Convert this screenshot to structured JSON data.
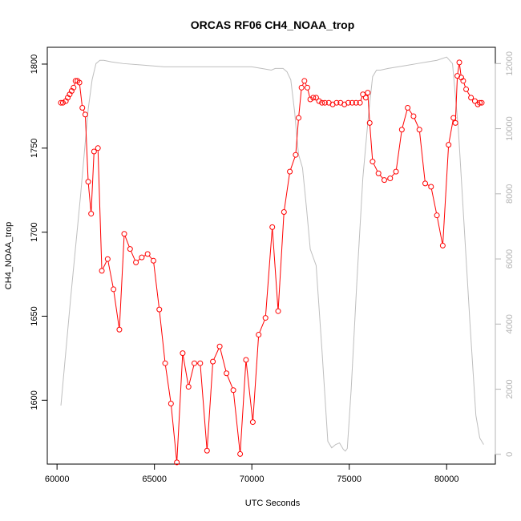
{
  "chart_data": {
    "type": "line",
    "title": "ORCAS RF06 CH4_NOAA_trop",
    "xlabel": "UTC Seconds",
    "ylabel": "CH4_NOAA_trop",
    "xlim": [
      59500,
      82500
    ],
    "ylim": [
      1562,
      1810
    ],
    "ylim_right": [
      -300,
      12500
    ],
    "x_ticks": [
      60000,
      65000,
      70000,
      75000,
      80000
    ],
    "y_ticks_left": [
      1600,
      1650,
      1700,
      1750,
      1800
    ],
    "y_ticks_right": [
      0,
      2000,
      4000,
      6000,
      8000,
      10000,
      12000
    ],
    "grid": false,
    "legend": "none",
    "colors": {
      "ch4": "#ff0000",
      "altitude": "#bebebe",
      "axis": "#000000",
      "right_axis": "#b4b4b4"
    },
    "series": [
      {
        "axis": "left",
        "style": "line+circles",
        "x": [
          60200,
          60300,
          60450,
          60550,
          60650,
          60750,
          60850,
          60950,
          61050,
          61150,
          61300,
          61450,
          61600,
          61750,
          61900,
          62100,
          62300,
          62600,
          62900,
          63200,
          63450,
          63750,
          64050,
          64350,
          64650,
          64950,
          65250,
          65550,
          65850,
          66150,
          66450,
          66750,
          67050,
          67350,
          67700,
          68000,
          68350,
          68700,
          69050,
          69400,
          69700,
          70050,
          70350,
          70700,
          71050,
          71350,
          71650,
          71950,
          72250,
          72400,
          72550,
          72700,
          72850,
          73000,
          73150,
          73300,
          73450,
          73600,
          73750,
          73950,
          74150,
          74350,
          74550,
          74750,
          74950,
          75150,
          75350,
          75550,
          75700,
          75850,
          75950,
          76050,
          76200,
          76500,
          76800,
          77100,
          77400,
          77700,
          78000,
          78300,
          78600,
          78900,
          79200,
          79500,
          79800,
          80100,
          80350,
          80450,
          80550,
          80650,
          80750,
          80850,
          81000,
          81250,
          81450,
          81600,
          81700,
          81800
        ],
        "y": [
          1777,
          1777,
          1778,
          1780,
          1782,
          1784,
          1786,
          1790,
          1790,
          1789,
          1774,
          1770,
          1730,
          1711,
          1748,
          1750,
          1677,
          1684,
          1666,
          1642,
          1699,
          1690,
          1682,
          1685,
          1687,
          1683,
          1654,
          1622,
          1598,
          1563,
          1628,
          1608,
          1622,
          1622,
          1570,
          1623,
          1632,
          1616,
          1606,
          1568,
          1624,
          1587,
          1639,
          1649,
          1703,
          1653,
          1712,
          1736,
          1746,
          1768,
          1786,
          1790,
          1786,
          1779,
          1780,
          1780,
          1778,
          1777,
          1777,
          1777,
          1776,
          1777,
          1777,
          1776,
          1777,
          1777,
          1777,
          1777,
          1782,
          1780,
          1783,
          1765,
          1742,
          1735,
          1731,
          1732,
          1736,
          1761,
          1774,
          1769,
          1761,
          1729,
          1727,
          1710,
          1692,
          1752,
          1768,
          1765,
          1793,
          1801,
          1792,
          1790,
          1785,
          1780,
          1778,
          1776,
          1777,
          1777
        ]
      },
      {
        "axis": "right",
        "style": "line",
        "x": [
          60200,
          60700,
          61200,
          61600,
          61800,
          62000,
          62200,
          62400,
          62800,
          63400,
          64500,
          65500,
          66500,
          67500,
          68500,
          69500,
          70000,
          70500,
          71000,
          71200,
          71400,
          71600,
          71800,
          72000,
          72100,
          72200,
          72300,
          72400,
          72500,
          72600,
          72800,
          73000,
          73300,
          73600,
          73900,
          74100,
          74300,
          74500,
          74700,
          74800,
          74900,
          75100,
          75400,
          75700,
          76000,
          76200,
          76400,
          76600,
          77000,
          77500,
          78000,
          78500,
          79000,
          79500,
          80000,
          80300,
          80600,
          80900,
          81200,
          81500,
          81700,
          81900
        ],
        "y": [
          1500,
          4800,
          7900,
          10600,
          11500,
          12000,
          12100,
          12100,
          12050,
          12000,
          11950,
          11900,
          11900,
          11900,
          11900,
          11900,
          11900,
          11850,
          11800,
          11850,
          11850,
          11850,
          11750,
          11500,
          11000,
          10500,
          9800,
          9200,
          9000,
          8800,
          7600,
          6300,
          5800,
          3200,
          400,
          200,
          300,
          350,
          150,
          100,
          180,
          2000,
          5400,
          8500,
          10500,
          11600,
          11800,
          11800,
          11850,
          11900,
          11950,
          12000,
          12050,
          12100,
          12200,
          12000,
          10000,
          7000,
          4000,
          1200,
          500,
          300
        ]
      }
    ]
  }
}
